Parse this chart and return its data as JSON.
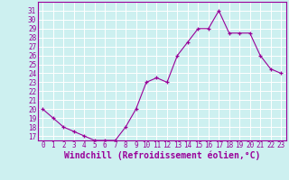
{
  "x": [
    0,
    1,
    2,
    3,
    4,
    5,
    6,
    7,
    8,
    9,
    10,
    11,
    12,
    13,
    14,
    15,
    16,
    17,
    18,
    19,
    20,
    21,
    22,
    23
  ],
  "y": [
    20,
    19,
    18,
    17.5,
    17,
    16.5,
    16.5,
    16.5,
    18,
    20,
    23,
    23.5,
    23,
    26,
    27.5,
    29,
    29,
    31,
    28.5,
    28.5,
    28.5,
    26,
    24.5,
    24
  ],
  "xlabel": "Windchill (Refroidissement éolien,°C)",
  "line_color": "#990099",
  "marker": "+",
  "bg_color": "#cdf0f0",
  "grid_color": "#ffffff",
  "ylim": [
    16.5,
    32
  ],
  "xlim": [
    -0.5,
    23.5
  ],
  "yticks": [
    17,
    18,
    19,
    20,
    21,
    22,
    23,
    24,
    25,
    26,
    27,
    28,
    29,
    30,
    31
  ],
  "xticks": [
    0,
    1,
    2,
    3,
    4,
    5,
    6,
    7,
    8,
    9,
    10,
    11,
    12,
    13,
    14,
    15,
    16,
    17,
    18,
    19,
    20,
    21,
    22,
    23
  ],
  "tick_fontsize": 5.5,
  "xlabel_fontsize": 7.0
}
